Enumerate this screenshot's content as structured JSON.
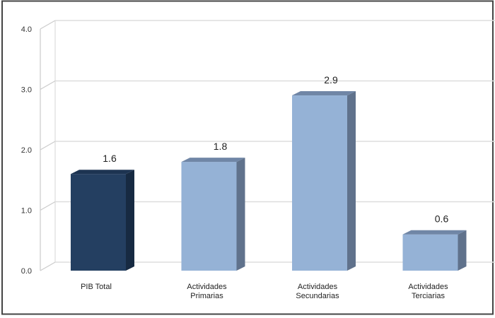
{
  "chart_data": {
    "type": "bar",
    "title": "",
    "xlabel": "",
    "ylabel": "",
    "categories": [
      [
        "PIB Total"
      ],
      [
        "Actividades",
        "Primarias"
      ],
      [
        "Actividades",
        "Secundarias"
      ],
      [
        "Actividades",
        "Terciarias"
      ]
    ],
    "values": [
      1.6,
      1.8,
      2.9,
      0.6
    ],
    "value_labels": [
      "1.6",
      "1.8",
      "2.9",
      "0.6"
    ],
    "ylim": [
      0,
      4
    ],
    "yticks": [
      "0.0",
      "1.0",
      "2.0",
      "3.0",
      "4.0"
    ],
    "grid": true,
    "legend": "none",
    "colors": {
      "highlight_front": "#243f61",
      "highlight_side": "#172a42",
      "highlight_top": "#1d3452",
      "normal_front": "#95b2d6",
      "normal_side": "#60728c",
      "normal_top": "#7086a6"
    }
  }
}
